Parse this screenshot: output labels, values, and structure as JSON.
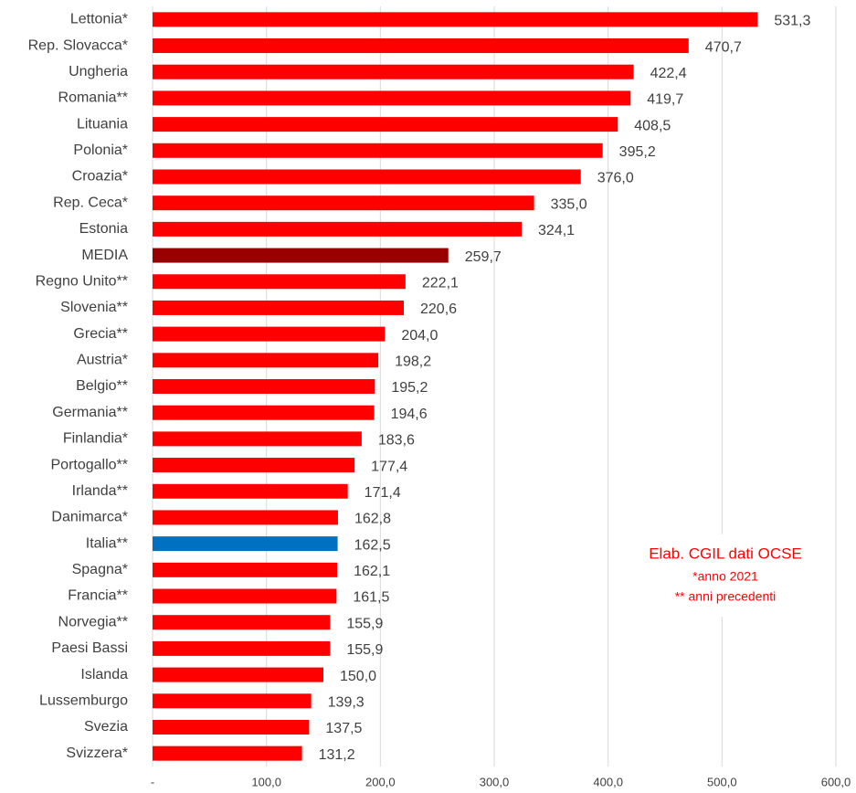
{
  "chart_data": {
    "type": "barh",
    "categories": [
      "Lettonia*",
      "Rep. Slovacca*",
      "Ungheria",
      "Romania**",
      "Lituania",
      "Polonia*",
      "Croazia*",
      "Rep. Ceca*",
      "Estonia",
      "MEDIA",
      "Regno Unito**",
      "Slovenia**",
      "Grecia**",
      "Austria*",
      "Belgio**",
      "Germania**",
      "Finlandia*",
      "Portogallo**",
      "Irlanda**",
      "Danimarca*",
      "Italia**",
      "Spagna*",
      "Francia**",
      "Norvegia**",
      "Paesi Bassi",
      "Islanda",
      "Lussemburgo",
      "Svezia",
      "Svizzera*"
    ],
    "values": [
      531.3,
      470.7,
      422.4,
      419.7,
      408.5,
      395.2,
      376.0,
      335.0,
      324.1,
      259.7,
      222.1,
      220.6,
      204.0,
      198.2,
      195.2,
      194.6,
      183.6,
      177.4,
      171.4,
      162.8,
      162.5,
      162.1,
      161.5,
      155.9,
      155.9,
      150.0,
      139.3,
      137.5,
      131.2
    ],
    "value_labels": [
      "531,3",
      "470,7",
      "422,4",
      "419,7",
      "408,5",
      "395,2",
      "376,0",
      "335,0",
      "324,1",
      "259,7",
      "222,1",
      "220,6",
      "204,0",
      "198,2",
      "195,2",
      "194,6",
      "183,6",
      "177,4",
      "171,4",
      "162,8",
      "162,5",
      "162,1",
      "161,5",
      "155,9",
      "155,9",
      "150,0",
      "139,3",
      "137,5",
      "131,2"
    ],
    "colors": [
      "#ff0000",
      "#ff0000",
      "#ff0000",
      "#ff0000",
      "#ff0000",
      "#ff0000",
      "#ff0000",
      "#ff0000",
      "#ff0000",
      "#990000",
      "#ff0000",
      "#ff0000",
      "#ff0000",
      "#ff0000",
      "#ff0000",
      "#ff0000",
      "#ff0000",
      "#ff0000",
      "#ff0000",
      "#ff0000",
      "#0070c0",
      "#ff0000",
      "#ff0000",
      "#ff0000",
      "#ff0000",
      "#ff0000",
      "#ff0000",
      "#ff0000",
      "#ff0000"
    ],
    "xlim": [
      0,
      600
    ],
    "xticks": [
      {
        "value": 0,
        "label": "-"
      },
      {
        "value": 100,
        "label": "100,0"
      },
      {
        "value": 200,
        "label": "200,0"
      },
      {
        "value": 300,
        "label": "300,0"
      },
      {
        "value": 400,
        "label": "400,0"
      },
      {
        "value": 500,
        "label": "500,0"
      },
      {
        "value": 600,
        "label": "600,0"
      }
    ],
    "grid": true,
    "annotations": [
      "Elab. CGIL dati OCSE",
      "*anno 2021",
      "** anni precedenti"
    ]
  }
}
